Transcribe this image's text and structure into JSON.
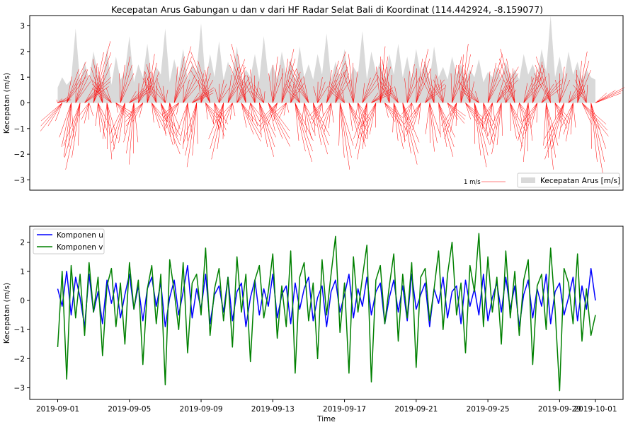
{
  "chart_data": [
    {
      "type": "area",
      "title": "Kecepatan Arus Gabungan u dan v dari HF Radar Selat Bali di Koordinat (114.442924, -8.159077)",
      "xlabel": "",
      "ylabel": "Kecepatan (m/s)",
      "ylim": [
        -3.4,
        3.4
      ],
      "yticks": [
        "3",
        "2",
        "1",
        "0",
        "−1",
        "−2",
        "−3"
      ],
      "grid": false,
      "legend_position": "lower-right",
      "series": [
        {
          "name": "Kecepatan Arus [m/s]",
          "kind": "filled-area",
          "color": "#d9d9d9",
          "x_days_start": "2019-09-01",
          "values": [
            0.6,
            1.0,
            0.7,
            0.9,
            2.9,
            0.8,
            1.6,
            0.9,
            2.0,
            1.1,
            0.8,
            2.1,
            0.7,
            1.8,
            0.9,
            1.2,
            2.6,
            0.8,
            1.5,
            1.0,
            2.3,
            0.9,
            1.4,
            1.1,
            2.9,
            0.8,
            1.7,
            1.0,
            2.1,
            0.9,
            1.5,
            1.2,
            3.1,
            0.8,
            1.9,
            1.0,
            2.4,
            0.9,
            1.6,
            1.1,
            2.2,
            0.8,
            1.3,
            1.0,
            1.9,
            0.9,
            2.6,
            1.0,
            1.5,
            0.9,
            2.0,
            1.1,
            1.7,
            0.8,
            2.2,
            1.0,
            1.5,
            0.9,
            1.9,
            1.1,
            2.7,
            0.9,
            1.6,
            1.0,
            2.1,
            0.8,
            1.4,
            1.1,
            2.8,
            0.9,
            2.0,
            1.2,
            1.6,
            0.9,
            1.9,
            1.1,
            2.3,
            1.0,
            1.8,
            0.9,
            2.1,
            1.1,
            1.6,
            0.9,
            2.2,
            1.0,
            1.4,
            0.9,
            1.8,
            1.1,
            1.5,
            0.9,
            1.3,
            1.0,
            1.7,
            0.8,
            1.2,
            1.0,
            1.4,
            0.9,
            1.6,
            1.0,
            1.3,
            0.9,
            1.9,
            1.1,
            1.5,
            1.0,
            2.1,
            1.2,
            3.4,
            1.0,
            1.8,
            0.9,
            2.0,
            1.1,
            1.6,
            0.9,
            1.3,
            1.0,
            0.9
          ]
        },
        {
          "name": "",
          "kind": "quiver",
          "color": "#ff0000",
          "quiver_key_label": "1 m/s",
          "x_days_start": "2019-09-01",
          "u": [
            0.4,
            -0.9,
            0.8,
            -0.3,
            0.5,
            -0.6,
            1.1,
            -0.2,
            0.7,
            0.3,
            -0.4,
            0.2,
            -0.8,
            0.6,
            0.4,
            -0.5,
            0.9,
            -0.2,
            0.5,
            -0.7,
            0.3,
            0.6,
            -0.4,
            0.8,
            -0.3,
            0.2,
            0.7,
            -0.6,
            0.5,
            -0.2,
            0.9,
            -0.4,
            0.3,
            0.6,
            -0.8,
            0.4,
            0.2,
            -0.5,
            0.7,
            -0.3,
            0.5,
            0.8,
            -0.6,
            0.3,
            -0.2,
            0.6,
            -0.4,
            0.9,
            0.2,
            -0.7,
            0.5,
            -0.3,
            0.4,
            0.7,
            -0.5,
            0.3,
            -0.8,
            0.6,
            0.2,
            -0.4,
            0.8,
            -0.3,
            0.5,
            0.4,
            -0.6,
            0.7,
            -0.2,
            0.3,
            0.6,
            -0.4,
            0.9,
            -0.5,
            0.2,
            0.7,
            -0.3,
            0.4,
            -0.7,
            0.6,
            0.3,
            -0.2,
            0.5,
            -0.6,
            0.8,
            0.2,
            -0.4,
            0.6,
            -0.3,
            0.7,
            0.4,
            -0.5,
            0.3,
            0.8,
            -0.2,
            0.5,
            -0.7,
            0.4,
            0.6,
            -0.3,
            0.9,
            -0.4,
            0.2,
            0.5,
            -0.6,
            0.3,
            0.7,
            -0.2,
            0.4,
            -0.5,
            0.8,
            0.3,
            -0.6,
            0.5,
            0.2,
            -0.8,
            0.6,
            -0.3,
            0.4,
            1.1,
            -0.4,
            0.5,
            1.2
          ],
          "v": [
            0.2,
            -1.1,
            1.6,
            -2.1,
            1.3,
            -2.6,
            1.0,
            -0.8,
            2.4,
            -1.4,
            1.7,
            -2.2,
            0.9,
            -0.6,
            1.8,
            -1.9,
            0.7,
            -2.4,
            1.2,
            -0.9,
            1.9,
            -1.2,
            1.5,
            -2.0,
            0.8,
            -1.6,
            2.2,
            -0.7,
            1.1,
            -1.8,
            0.6,
            -2.5,
            1.4,
            -1.0,
            2.0,
            -1.3,
            0.9,
            -2.2,
            1.7,
            -0.8,
            1.0,
            -1.5,
            2.3,
            -0.9,
            1.3,
            -2.1,
            0.7,
            -1.7,
            1.8,
            -1.1,
            2.1,
            -0.6,
            1.2,
            -2.3,
            0.9,
            -1.4,
            1.6,
            -2.0,
            1.0,
            -0.8,
            2.0,
            -1.2,
            1.4,
            -2.6,
            0.8,
            -1.7,
            1.9,
            -1.0,
            1.2,
            -2.2,
            0.6,
            -1.5,
            2.2,
            -0.9,
            1.7,
            -1.8,
            1.0,
            -2.4,
            1.5,
            -0.7,
            2.1,
            -1.3,
            0.9,
            -1.9,
            1.6,
            -2.1,
            1.1,
            -0.8,
            1.8,
            -1.4,
            2.3,
            -1.0,
            1.3,
            -2.5,
            0.7,
            -1.6,
            1.9,
            -1.1,
            1.4,
            -2.0,
            0.8,
            -1.7,
            2.1,
            -0.9,
            1.2,
            -2.3,
            1.6,
            -1.2,
            0.9,
            -2.6,
            1.8,
            -1.0,
            1.4,
            -2.2,
            0.7,
            -1.5,
            2.0,
            -1.3,
            1.1,
            -2.8,
            0.6
          ]
        }
      ]
    },
    {
      "type": "line",
      "title": "",
      "xlabel": "Time",
      "ylabel": "Kecepatan (m/s)",
      "ylim": [
        -3.4,
        2.55
      ],
      "yticks": [
        "2",
        "1",
        "0",
        "−1",
        "−2",
        "−3"
      ],
      "xlim_days": [
        -1,
        31.6
      ],
      "xticks": [
        "2019-09-01",
        "2019-09-05",
        "2019-09-09",
        "2019-09-13",
        "2019-09-17",
        "2019-09-21",
        "2019-09-25",
        "2019-09-29",
        "2019-10-01"
      ],
      "grid": false,
      "legend_position": "top-left",
      "x_days_start": "2019-09-01",
      "x_step_days": 0.125,
      "series": [
        {
          "name": "Komponen u",
          "color": "#0000ff",
          "values": [
            0.4,
            -0.2,
            1.0,
            -0.5,
            0.8,
            0.1,
            -0.9,
            0.9,
            -0.4,
            0.3,
            -0.8,
            0.7,
            -0.1,
            0.6,
            -0.6,
            0.2,
            0.9,
            -0.3,
            0.5,
            -0.7,
            0.4,
            0.8,
            -0.2,
            0.6,
            -0.9,
            0.1,
            0.7,
            -0.5,
            0.3,
            1.2,
            -0.6,
            0.4,
            -0.3,
            0.9,
            -0.8,
            0.2,
            0.5,
            -0.4,
            0.8,
            -0.7,
            0.3,
            0.6,
            -0.9,
            0.1,
            0.7,
            -0.5,
            0.4,
            -0.2,
            0.9,
            -0.6,
            0.2,
            0.5,
            -0.8,
            0.6,
            -0.3,
            0.4,
            0.8,
            -0.7,
            0.1,
            0.5,
            -0.9,
            0.3,
            0.7,
            -0.4,
            0.2,
            0.9,
            -0.6,
            0.4,
            -0.2,
            0.8,
            -0.5,
            0.3,
            0.6,
            -0.8,
            0.1,
            0.7,
            -0.4,
            0.5,
            -0.7,
            0.9,
            -0.3,
            0.2,
            0.6,
            -0.9,
            0.4,
            -0.1,
            0.8,
            -0.6,
            0.3,
            0.5,
            -0.8,
            0.7,
            -0.2,
            0.4,
            -0.5,
            0.9,
            -0.7,
            0.1,
            0.6,
            -0.4,
            0.8,
            -0.3,
            0.5,
            -0.9,
            0.2,
            0.7,
            -0.6,
            0.4,
            -0.2,
            0.9,
            -0.8,
            0.3,
            0.6,
            -0.5,
            0.1,
            0.8,
            -0.7,
            0.5,
            -0.3,
            1.1,
            0.0
          ]
        },
        {
          "name": "Komponen v",
          "color": "#008000",
          "values": [
            -1.6,
            1.0,
            -2.7,
            1.2,
            -0.6,
            0.9,
            -1.2,
            1.3,
            -0.4,
            0.8,
            -1.9,
            0.5,
            1.1,
            -0.9,
            0.6,
            -1.5,
            1.3,
            -0.3,
            0.7,
            -2.2,
            0.4,
            1.2,
            -0.8,
            0.9,
            -2.9,
            1.4,
            0.3,
            -1.0,
            1.3,
            -1.8,
            0.6,
            0.9,
            -0.5,
            1.8,
            -1.2,
            0.4,
            1.1,
            -0.7,
            0.8,
            -1.6,
            1.5,
            -0.4,
            0.9,
            -2.1,
            0.7,
            1.2,
            -0.6,
            0.3,
            1.6,
            -1.3,
            0.5,
            -0.9,
            1.7,
            -2.5,
            0.8,
            1.3,
            -0.7,
            0.6,
            -2.0,
            1.4,
            -0.5,
            0.9,
            2.2,
            -1.1,
            0.6,
            -2.5,
            1.5,
            -0.4,
            0.8,
            1.9,
            -2.8,
            0.7,
            1.2,
            -0.8,
            0.5,
            1.6,
            -1.4,
            0.9,
            -0.6,
            1.3,
            -2.3,
            0.8,
            1.1,
            -0.7,
            0.4,
            1.7,
            -1.0,
            0.9,
            2.0,
            -0.5,
            0.6,
            -1.8,
            1.2,
            0.3,
            2.3,
            -0.9,
            1.5,
            -0.4,
            0.8,
            -1.5,
            1.7,
            -0.6,
            1.0,
            -1.2,
            0.7,
            1.4,
            -2.2,
            0.5,
            0.9,
            -1.0,
            1.8,
            -0.3,
            -3.1,
            1.1,
            0.6,
            -0.8,
            1.6,
            -1.4,
            0.4,
            -1.2,
            -0.5
          ]
        }
      ]
    }
  ]
}
